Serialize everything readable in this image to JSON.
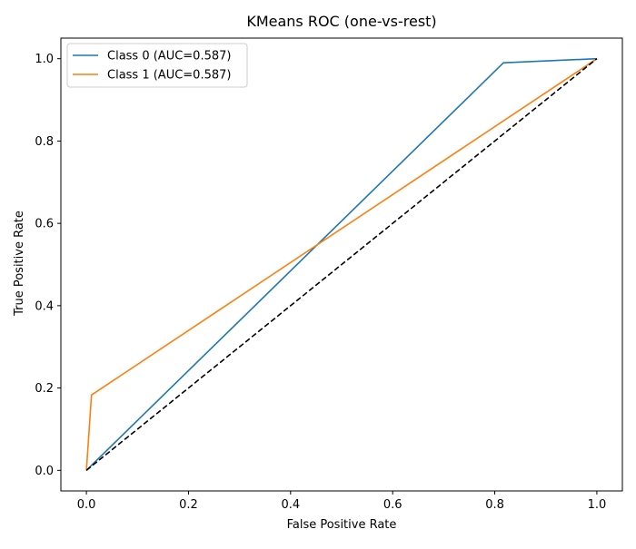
{
  "chart_data": {
    "type": "line",
    "title": "KMeans ROC (one-vs-rest)",
    "xlabel": "False Positive Rate",
    "ylabel": "True Positive Rate",
    "xlim": [
      -0.05,
      1.05
    ],
    "ylim": [
      -0.05,
      1.05
    ],
    "xticks": [
      0.0,
      0.2,
      0.4,
      0.6,
      0.8,
      1.0
    ],
    "yticks": [
      0.0,
      0.2,
      0.4,
      0.6,
      0.8,
      1.0
    ],
    "xtick_labels": [
      "0.0",
      "0.2",
      "0.4",
      "0.6",
      "0.8",
      "1.0"
    ],
    "ytick_labels": [
      "0.0",
      "0.2",
      "0.4",
      "0.6",
      "0.8",
      "1.0"
    ],
    "grid": false,
    "legend_position": "upper-left",
    "series": [
      {
        "name": "Class 0 (AUC=0.587)",
        "color": "#1f77b4",
        "x": [
          0.0,
          0.817,
          1.0
        ],
        "y": [
          0.0,
          0.99,
          1.0
        ]
      },
      {
        "name": "Class 1 (AUC=0.587)",
        "color": "#ff7f0e",
        "x": [
          0.0,
          0.01,
          1.0
        ],
        "y": [
          0.0,
          0.183,
          1.0
        ]
      }
    ],
    "reference_line": {
      "style": "dashed",
      "color": "#000000",
      "x": [
        0.0,
        1.0
      ],
      "y": [
        0.0,
        1.0
      ]
    }
  }
}
